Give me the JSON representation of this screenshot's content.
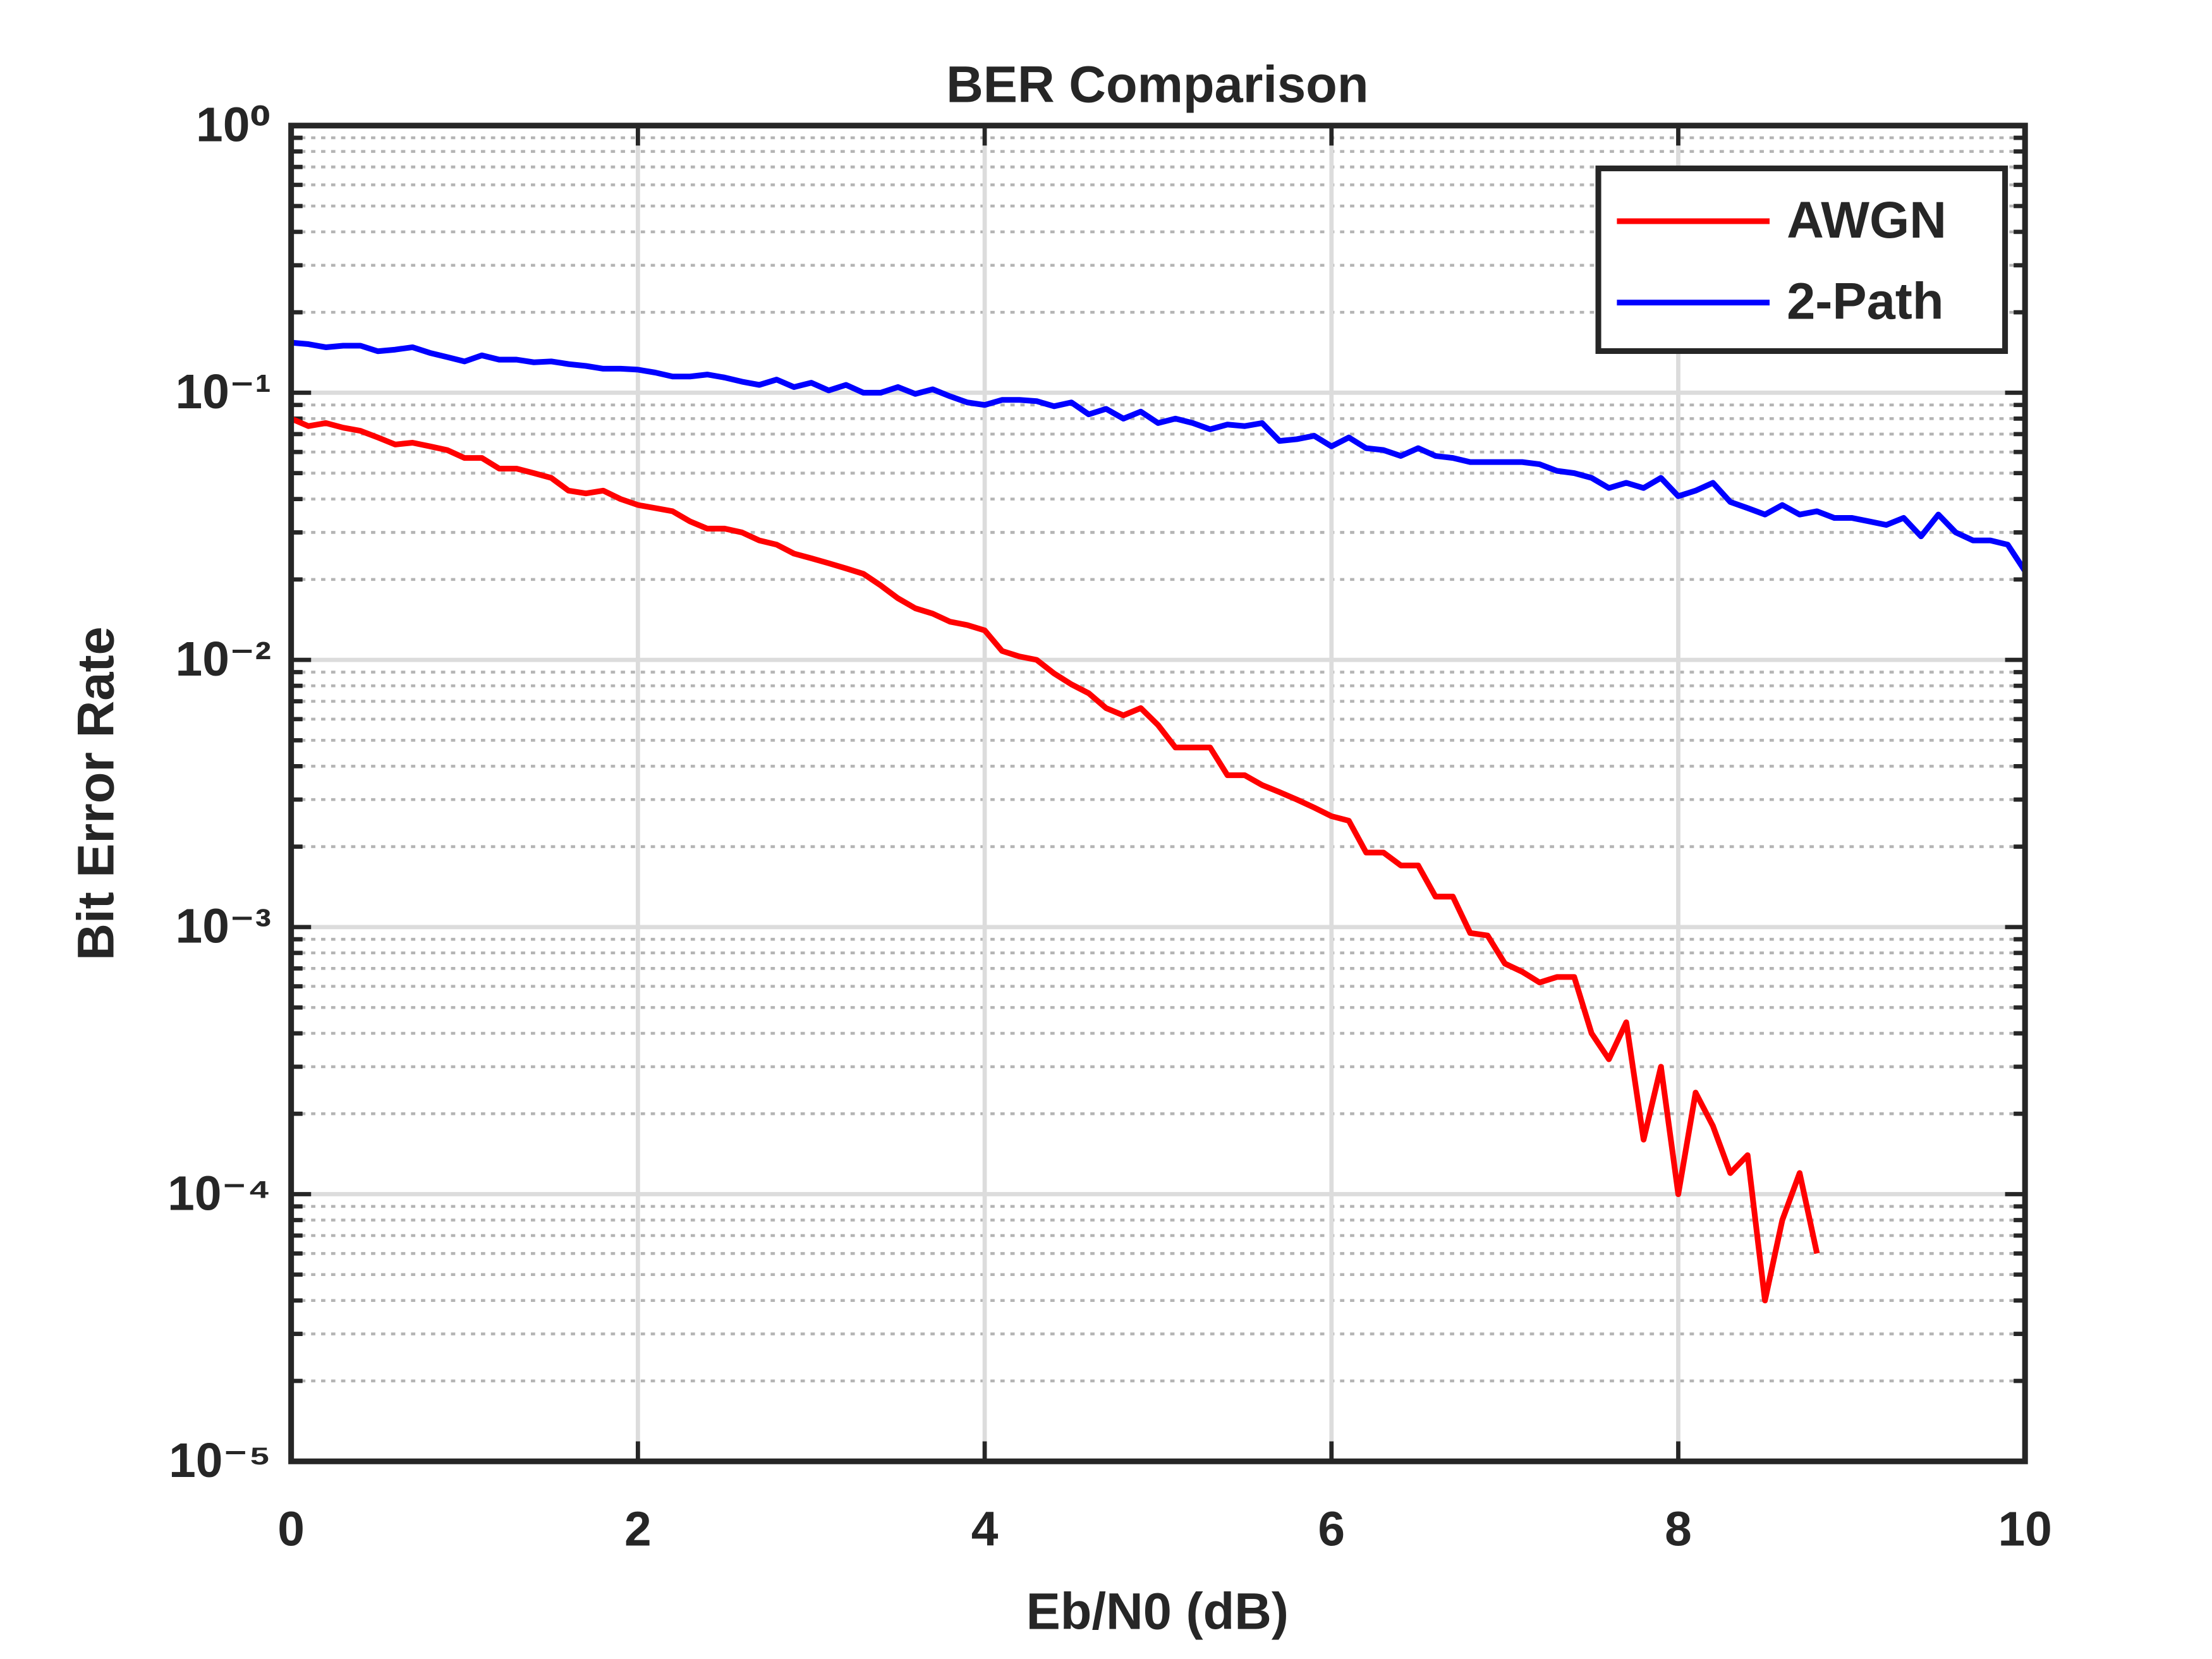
{
  "chart_data": {
    "type": "line",
    "title": "BER Comparison",
    "xlabel": "Eb/N0 (dB)",
    "ylabel": "Bit Error Rate",
    "x": [
      0,
      0.1,
      0.2,
      0.3,
      0.4,
      0.5,
      0.6,
      0.7,
      0.8,
      0.9,
      1,
      1.1,
      1.2,
      1.3,
      1.4,
      1.5,
      1.6,
      1.7,
      1.8,
      1.9,
      2,
      2.1,
      2.2,
      2.3,
      2.4,
      2.5,
      2.6,
      2.7,
      2.8,
      2.9,
      3,
      3.1,
      3.2,
      3.3,
      3.4,
      3.5,
      3.6,
      3.7,
      3.8,
      3.9,
      4,
      4.1,
      4.2,
      4.3,
      4.4,
      4.5,
      4.6,
      4.7,
      4.8,
      4.9,
      5,
      5.1,
      5.2,
      5.3,
      5.4,
      5.5,
      5.6,
      5.7,
      5.8,
      5.9,
      6,
      6.1,
      6.2,
      6.3,
      6.4,
      6.5,
      6.6,
      6.7,
      6.8,
      6.9,
      7,
      7.1,
      7.2,
      7.3,
      7.4,
      7.5,
      7.6,
      7.7,
      7.8,
      7.9,
      8,
      8.1,
      8.2,
      8.3,
      8.4,
      8.5,
      8.6,
      8.7,
      8.8,
      8.9,
      9,
      9.1,
      9.2,
      9.3,
      9.4,
      9.5,
      9.6,
      9.7,
      9.8,
      9.9,
      10
    ],
    "series": [
      {
        "name": "AWGN",
        "color": "#ff0000",
        "values": [
          0.08,
          0.075,
          0.077,
          0.074,
          0.072,
          0.068,
          0.064,
          0.065,
          0.063,
          0.061,
          0.057,
          0.057,
          0.052,
          0.052,
          0.05,
          0.048,
          0.043,
          0.042,
          0.043,
          0.04,
          0.038,
          0.037,
          0.036,
          0.033,
          0.031,
          0.031,
          0.03,
          0.028,
          0.027,
          0.025,
          0.024,
          0.023,
          0.022,
          0.021,
          0.019,
          0.017,
          0.0156,
          0.0149,
          0.0139,
          0.0135,
          0.0129,
          0.0108,
          0.0103,
          0.01,
          0.0089,
          0.0081,
          0.0075,
          0.0066,
          0.0062,
          0.0066,
          0.0057,
          0.0047,
          0.0047,
          0.0047,
          0.0037,
          0.0037,
          0.0034,
          0.0032,
          0.003,
          0.0028,
          0.0026,
          0.0025,
          0.0019,
          0.0019,
          0.0017,
          0.0017,
          0.0013,
          0.0013,
          0.00095,
          0.00093,
          0.00073,
          0.00068,
          0.00062,
          0.00065,
          0.00065,
          0.0004,
          0.00032,
          0.00044,
          0.00016,
          0.0003,
          0.0001,
          0.00024,
          0.00018,
          0.00012,
          0.00014,
          4e-05,
          8e-05,
          0.00012,
          6e-05,
          null,
          null,
          null,
          null,
          null,
          null,
          null,
          null,
          null,
          null,
          null,
          null
        ]
      },
      {
        "name": "2-Path",
        "color": "#0000ff",
        "values": [
          0.154,
          0.152,
          0.148,
          0.15,
          0.15,
          0.143,
          0.145,
          0.148,
          0.141,
          0.136,
          0.131,
          0.138,
          0.133,
          0.133,
          0.13,
          0.131,
          0.128,
          0.126,
          0.123,
          0.123,
          0.122,
          0.119,
          0.115,
          0.115,
          0.117,
          0.114,
          0.11,
          0.107,
          0.112,
          0.105,
          0.109,
          0.102,
          0.107,
          0.1,
          0.1,
          0.105,
          0.099,
          0.103,
          0.097,
          0.092,
          0.09,
          0.094,
          0.094,
          0.093,
          0.089,
          0.092,
          0.083,
          0.087,
          0.08,
          0.085,
          0.077,
          0.08,
          0.077,
          0.073,
          0.076,
          0.075,
          0.077,
          0.066,
          0.067,
          0.069,
          0.063,
          0.068,
          0.062,
          0.061,
          0.058,
          0.062,
          0.058,
          0.057,
          0.055,
          0.055,
          0.055,
          0.055,
          0.054,
          0.051,
          0.05,
          0.048,
          0.044,
          0.046,
          0.044,
          0.048,
          0.041,
          0.043,
          0.046,
          0.039,
          0.037,
          0.035,
          0.038,
          0.035,
          0.036,
          0.034,
          0.034,
          0.033,
          0.032,
          0.034,
          0.029,
          0.035,
          0.03,
          0.028,
          0.028,
          0.027,
          0.0215
        ]
      }
    ],
    "xlim": [
      0,
      10
    ],
    "xticks": [
      0,
      2,
      4,
      6,
      8,
      10
    ],
    "ylim": [
      1e-05,
      1
    ],
    "yscale": "log",
    "yticks": [
      {
        "value": 1e-05,
        "label": "10⁻⁵"
      },
      {
        "value": 0.0001,
        "label": "10⁻⁴"
      },
      {
        "value": 0.001,
        "label": "10⁻³"
      },
      {
        "value": 0.01,
        "label": "10⁻²"
      },
      {
        "value": 0.1,
        "label": "10⁻¹"
      },
      {
        "value": 1,
        "label": "10⁰"
      }
    ],
    "grid": true,
    "minor_grid": true,
    "legend": "upper right"
  }
}
